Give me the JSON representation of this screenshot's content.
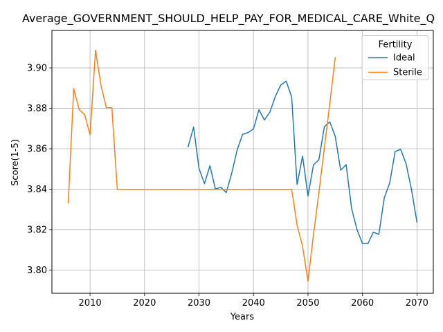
{
  "chart_data": {
    "type": "line",
    "title": "Average_GOVERNMENT_SHOULD_HELP_PAY_FOR_MEDICAL_CARE_White_Q",
    "xlabel": "Years",
    "ylabel": "Score(1-5)",
    "xlim": [
      2003,
      2073
    ],
    "ylim": [
      3.7885,
      3.9185
    ],
    "xticks": [
      2010,
      2020,
      2030,
      2040,
      2050,
      2060,
      2070
    ],
    "yticks": [
      3.8,
      3.82,
      3.84,
      3.86,
      3.88,
      3.9
    ],
    "ytick_labels": [
      "3.80",
      "3.82",
      "3.84",
      "3.86",
      "3.88",
      "3.90"
    ],
    "grid": true,
    "legend": {
      "title": "Fertility",
      "position": "top-right"
    },
    "series": [
      {
        "name": "Ideal",
        "color": "#1f77b4",
        "x": [
          2028,
          2029,
          2030,
          2031,
          2032,
          2033,
          2034,
          2035,
          2036,
          2037,
          2038,
          2039,
          2040,
          2041,
          2042,
          2043,
          2044,
          2045,
          2046,
          2047,
          2048,
          2049,
          2050,
          2051,
          2052,
          2053,
          2054,
          2055,
          2056,
          2057,
          2058,
          2059,
          2060,
          2061,
          2062,
          2063,
          2064,
          2065,
          2066,
          2067,
          2068,
          2069,
          2070
        ],
        "y": [
          3.861,
          3.8707,
          3.8502,
          3.8427,
          3.8516,
          3.8401,
          3.8409,
          3.8383,
          3.8479,
          3.8594,
          3.8671,
          3.868,
          3.8698,
          3.8793,
          3.8742,
          3.8781,
          3.8858,
          3.8915,
          3.8934,
          3.8856,
          3.8423,
          3.8563,
          3.8366,
          3.852,
          3.8545,
          3.8709,
          3.8733,
          3.8661,
          3.8494,
          3.8521,
          3.8305,
          3.8199,
          3.8131,
          3.8131,
          3.8187,
          3.8176,
          3.8357,
          3.8431,
          3.8586,
          3.8597,
          3.8526,
          3.8397,
          3.8237
        ]
      },
      {
        "name": "Sterile",
        "color": "#ff7f0e",
        "x": [
          2006,
          2007,
          2008,
          2009,
          2010,
          2011,
          2012,
          2013,
          2014,
          2015,
          2020,
          2030,
          2040,
          2047,
          2048,
          2049,
          2050,
          2051,
          2052,
          2053,
          2054,
          2055
        ],
        "y": [
          3.8333,
          3.8898,
          3.8793,
          3.8769,
          3.8669,
          3.9087,
          3.8913,
          3.8803,
          3.8802,
          3.8399,
          3.8399,
          3.8399,
          3.8399,
          3.8399,
          3.8222,
          3.8118,
          3.7944,
          3.8174,
          3.8383,
          3.8604,
          3.8823,
          3.905
        ]
      }
    ]
  }
}
